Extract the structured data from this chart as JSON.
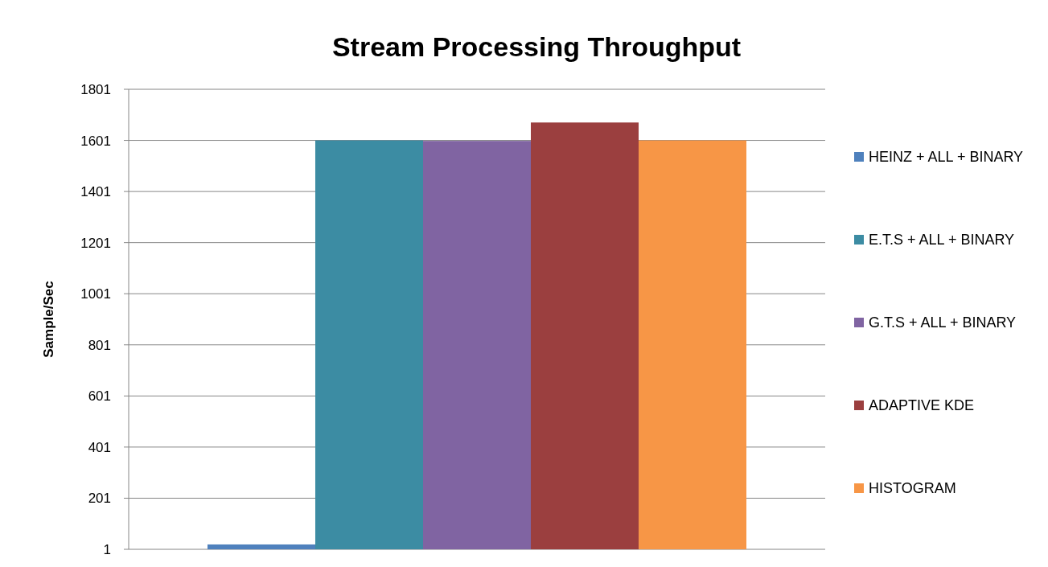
{
  "chart_data": {
    "type": "bar",
    "title": "Stream Processing Throughput",
    "ylabel": "Sample/Sec",
    "categories": [
      null
    ],
    "series": [
      {
        "name": "HEINZ + ALL + BINARY",
        "color": "#4f81bd",
        "values": [
          20
        ]
      },
      {
        "name": "E.T.S + ALL + BINARY",
        "color": "#3c8ca3",
        "values": [
          1601
        ]
      },
      {
        "name": "G.T.S + ALL + BINARY",
        "color": "#8064a2",
        "values": [
          1599
        ]
      },
      {
        "name": "ADAPTIVE KDE",
        "color": "#9b3f3f",
        "values": [
          1671
        ]
      },
      {
        "name": "HISTOGRAM",
        "color": "#f79646",
        "values": [
          1601
        ]
      }
    ],
    "ylim": [
      1,
      1801
    ],
    "yticks": [
      1,
      201,
      401,
      601,
      801,
      1001,
      1201,
      1401,
      1601,
      1801
    ],
    "grid": "y",
    "legend": "right"
  }
}
